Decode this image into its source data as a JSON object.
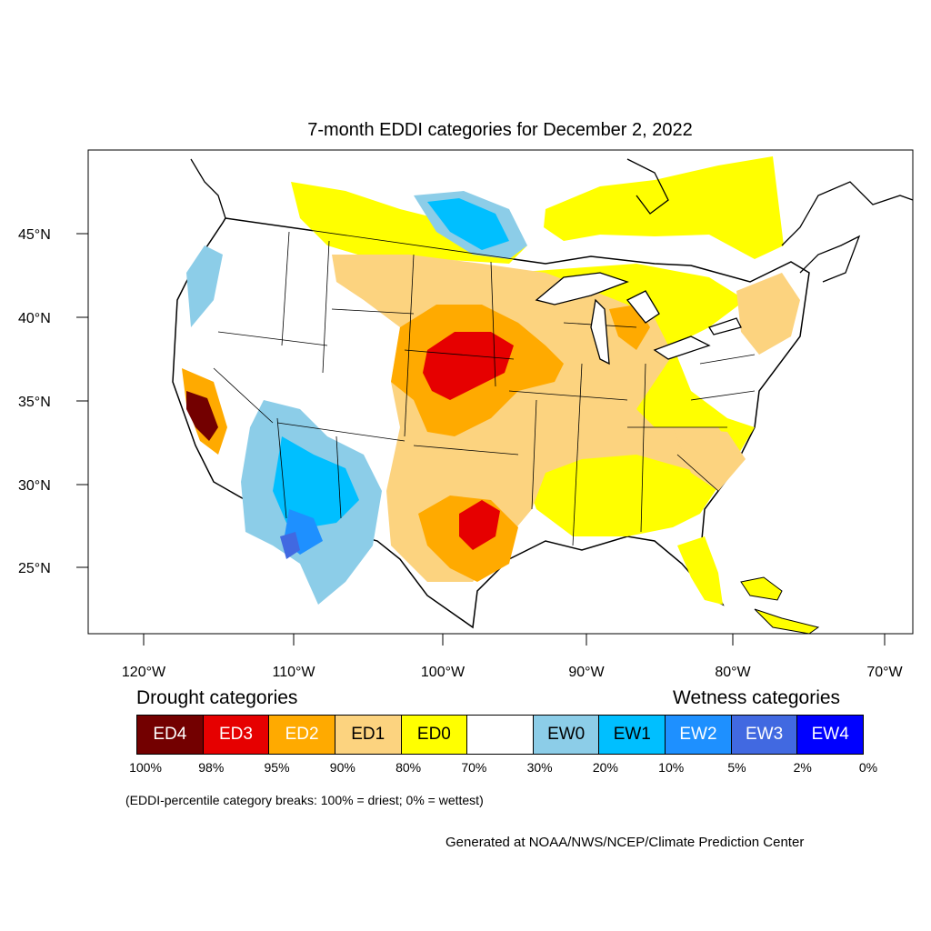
{
  "title": "7-month EDDI categories for December 2, 2022",
  "lat_labels": [
    "45°N",
    "40°N",
    "35°N",
    "30°N",
    "25°N"
  ],
  "lon_labels": [
    "120°W",
    "110°W",
    "100°W",
    "90°W",
    "80°W",
    "70°W"
  ],
  "legend": {
    "drought_label": "Drought categories",
    "wetness_label": "Wetness categories",
    "categories": [
      {
        "label": "ED4",
        "color": "#730000",
        "text_color": "#ffffff"
      },
      {
        "label": "ED3",
        "color": "#e60000",
        "text_color": "#ffffff"
      },
      {
        "label": "ED2",
        "color": "#ffaa00",
        "text_color": "#ffffff"
      },
      {
        "label": "ED1",
        "color": "#fcd37f",
        "text_color": "#000000"
      },
      {
        "label": "ED0",
        "color": "#ffff00",
        "text_color": "#000000"
      },
      {
        "label": "",
        "color": "#ffffff",
        "text_color": "#000000"
      },
      {
        "label": "EW0",
        "color": "#8ccde8",
        "text_color": "#000000"
      },
      {
        "label": "EW1",
        "color": "#00bfff",
        "text_color": "#000000"
      },
      {
        "label": "EW2",
        "color": "#1e90ff",
        "text_color": "#ffffff"
      },
      {
        "label": "EW3",
        "color": "#4169e1",
        "text_color": "#ffffff"
      },
      {
        "label": "EW4",
        "color": "#0000ff",
        "text_color": "#ffffff"
      }
    ],
    "breaks": [
      "100%",
      "98%",
      "95%",
      "90%",
      "80%",
      "70%",
      "30%",
      "20%",
      "10%",
      "5%",
      "2%",
      "0%"
    ]
  },
  "note": "(EDDI-percentile category breaks: 100% = driest; 0% = wettest)",
  "credit": "Generated at NOAA/NWS/NCEP/Climate Prediction Center"
}
